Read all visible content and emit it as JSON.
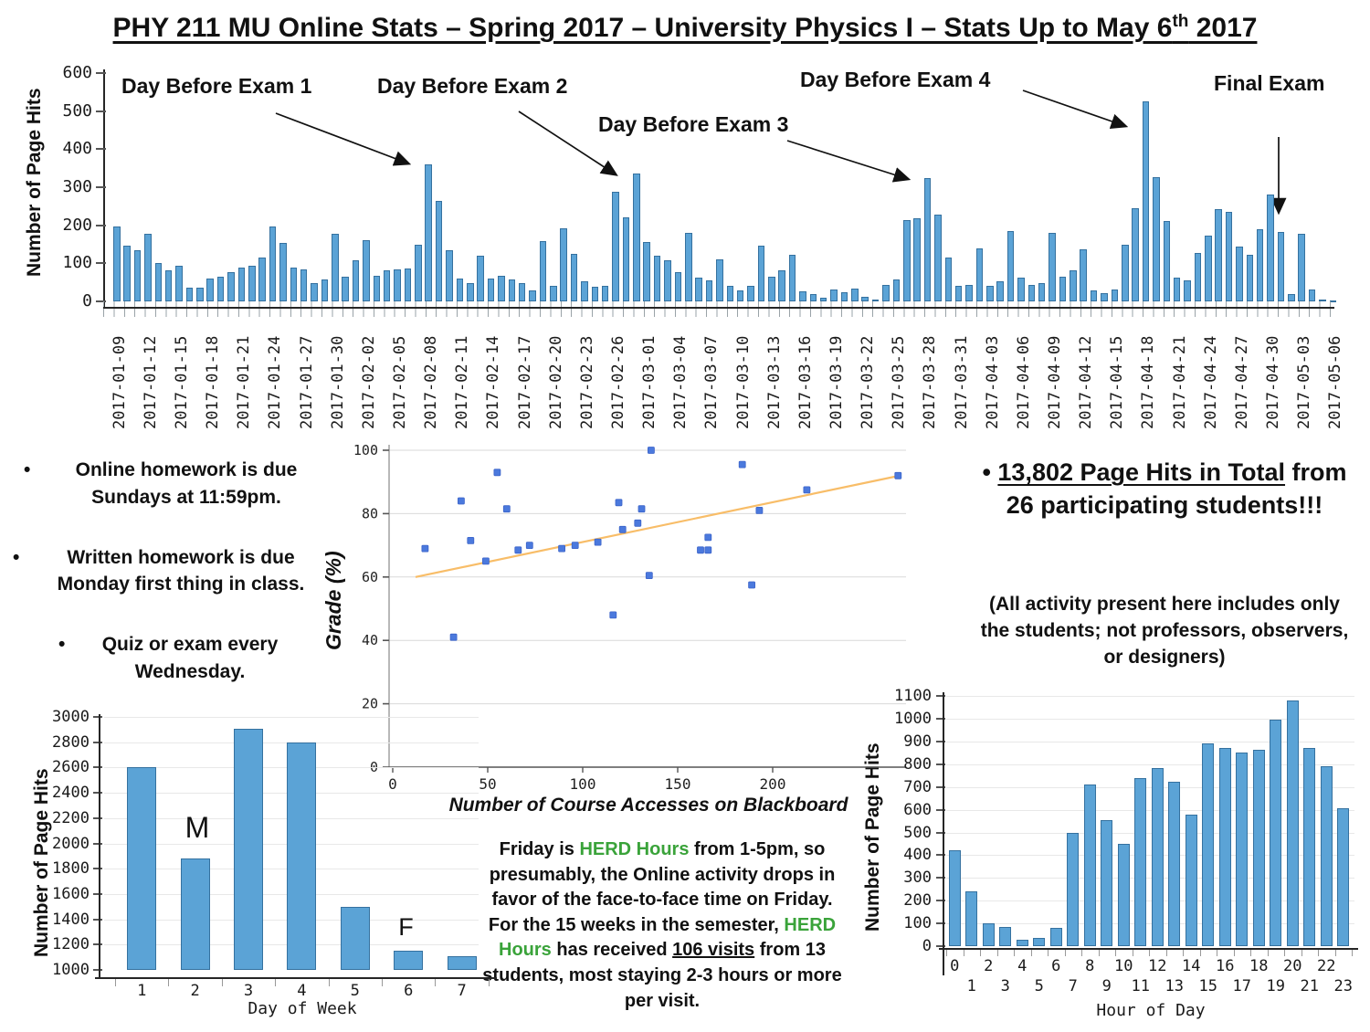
{
  "page_title": {
    "main": "PHY 211 MU Online Stats – Spring 2017 – University Physics I – Stats Up to May 6",
    "sup": "th",
    "tail": " 2017"
  },
  "colors": {
    "bar_fill": "#5ba3d6",
    "bar_stroke": "#35719f",
    "scatter_point": "#4b79dd",
    "scatter_point_stroke": "#3b63c9",
    "trend_line": "#f8bd68",
    "herd_green": "#3aa33a",
    "axis": "#262626",
    "grid": "#d9d9d9"
  },
  "exam_annotations": [
    "Day Before Exam 1",
    "Day Before Exam 2",
    "Day Before Exam 3",
    "Day Before Exam 4",
    "Final Exam"
  ],
  "left_notes": {
    "items": [
      "Online homework is due Sundays at 11:59pm.",
      "Written homework is due Monday first thing in class.",
      "Quiz or exam every Wednesday."
    ]
  },
  "totals": {
    "headline": "13,802 Page Hits in Total",
    "rest": "from 26 participating students!!!",
    "note": "(All activity present here includes only the students; not professors, observers, or designers)"
  },
  "herd_note": {
    "p1": "Friday is ",
    "green1": "HERD Hours",
    "p2": " from 1-5pm, so presumably, the Online activity drops in favor of the face-to-face time on Friday. For the 15 weeks in the semester, ",
    "green2": "HERD Hours",
    "p3": " has received ",
    "visits": "106 visits",
    "p4": " from 13 students, most staying 2-3 hours or more per visit."
  },
  "chart_data": [
    {
      "id": "daily-page-hits",
      "type": "bar",
      "ylabel": "Number of Page Hits",
      "ylim": [
        0,
        600
      ],
      "yticks": [
        0,
        100,
        200,
        300,
        400,
        500,
        600
      ],
      "x_start": "2017-01-09",
      "x_end": "2017-05-06",
      "x_tick_labels": [
        "2017-01-09",
        "2017-01-12",
        "2017-01-15",
        "2017-01-18",
        "2017-01-21",
        "2017-01-24",
        "2017-01-27",
        "2017-01-30",
        "2017-02-02",
        "2017-02-05",
        "2017-02-08",
        "2017-02-11",
        "2017-02-14",
        "2017-02-17",
        "2017-02-20",
        "2017-02-23",
        "2017-02-26",
        "2017-03-01",
        "2017-03-04",
        "2017-03-07",
        "2017-03-10",
        "2017-03-13",
        "2017-03-16",
        "2017-03-19",
        "2017-03-22",
        "2017-03-25",
        "2017-03-28",
        "2017-03-31",
        "2017-04-03",
        "2017-04-06",
        "2017-04-09",
        "2017-04-12",
        "2017-04-15",
        "2017-04-18",
        "2017-04-21",
        "2017-04-24",
        "2017-04-27",
        "2017-04-30",
        "2017-05-03",
        "2017-05-06"
      ],
      "values": [
        197,
        146,
        135,
        177,
        100,
        81,
        93,
        35,
        35,
        59,
        64,
        76,
        88,
        93,
        115,
        197,
        154,
        90,
        85,
        48,
        57,
        177,
        64,
        107,
        162,
        68,
        82,
        85,
        86,
        150,
        360,
        263,
        134,
        59,
        48,
        120,
        60,
        68,
        57,
        47,
        30,
        158,
        40,
        192,
        126,
        52,
        39,
        40,
        289,
        222,
        335,
        156,
        120,
        107,
        78,
        181,
        63,
        56,
        110,
        40,
        28,
        41,
        146,
        66,
        81,
        123,
        26,
        19,
        10,
        32,
        25,
        34,
        13,
        6,
        44,
        57,
        214,
        219,
        325,
        227,
        116,
        40,
        43,
        140,
        42,
        52,
        186,
        63,
        43,
        49,
        180,
        66,
        81,
        138,
        29,
        21,
        31,
        150,
        244,
        525,
        327,
        212,
        63,
        56,
        127,
        174,
        242,
        235,
        144,
        123,
        189,
        281,
        182,
        19,
        177,
        31,
        6,
        2
      ]
    },
    {
      "id": "grade-vs-accesses",
      "type": "scatter",
      "xlabel": "Number of Course Accesses on Blackboard",
      "ylabel": "Grade (%)",
      "xlim": [
        0,
        270
      ],
      "ylim": [
        0,
        100
      ],
      "xticks": [
        0,
        50,
        100,
        150,
        200
      ],
      "yticks": [
        0,
        20,
        40,
        60,
        80,
        100
      ],
      "grid": "horizontal",
      "points": [
        [
          17,
          69
        ],
        [
          32,
          41
        ],
        [
          36,
          84
        ],
        [
          41,
          71.5
        ],
        [
          49,
          65
        ],
        [
          55,
          93
        ],
        [
          60,
          81.5
        ],
        [
          66,
          68.5
        ],
        [
          72,
          70
        ],
        [
          89,
          69
        ],
        [
          96,
          70
        ],
        [
          108,
          71
        ],
        [
          116,
          48
        ],
        [
          119,
          83.5
        ],
        [
          121,
          75
        ],
        [
          129,
          77
        ],
        [
          131,
          81.5
        ],
        [
          135,
          60.5
        ],
        [
          136,
          100
        ],
        [
          162,
          68.5
        ],
        [
          166,
          72.5
        ],
        [
          166,
          68.5
        ],
        [
          184,
          95.5
        ],
        [
          189,
          57.5
        ],
        [
          193,
          81
        ],
        [
          218,
          87.5
        ],
        [
          266,
          92
        ]
      ],
      "trend_line": {
        "x1": 12,
        "y1": 60,
        "x2": 267,
        "y2": 92
      }
    },
    {
      "id": "day-of-week-page-hits",
      "type": "bar",
      "xlabel": "Day of Week",
      "ylabel": "Number of Page Hits",
      "categories": [
        "1",
        "2",
        "3",
        "4",
        "5",
        "6",
        "7"
      ],
      "values": [
        2600,
        1880,
        2905,
        2795,
        1500,
        1150,
        1110
      ],
      "ylim": [
        1000,
        3000
      ],
      "yticks": [
        1000,
        1200,
        1400,
        1600,
        1800,
        2000,
        2200,
        2400,
        2600,
        2800,
        3000
      ],
      "bar_labels": [
        {
          "text": "M",
          "day": 2
        },
        {
          "text": "F",
          "day": 6
        }
      ]
    },
    {
      "id": "hour-of-day-page-hits",
      "type": "bar",
      "xlabel": "Hour of Day",
      "ylabel": "Number of Page Hits",
      "categories": [
        "0",
        "1",
        "2",
        "3",
        "4",
        "5",
        "6",
        "7",
        "8",
        "9",
        "10",
        "11",
        "12",
        "13",
        "14",
        "15",
        "16",
        "17",
        "18",
        "19",
        "20",
        "21",
        "22",
        "23"
      ],
      "values": [
        420,
        240,
        100,
        85,
        30,
        38,
        80,
        497,
        712,
        553,
        452,
        740,
        785,
        723,
        580,
        890,
        873,
        853,
        862,
        995,
        1080,
        873,
        790,
        607
      ],
      "ylim": [
        0,
        1100
      ],
      "yticks": [
        0,
        100,
        200,
        300,
        400,
        500,
        600,
        700,
        800,
        900,
        1000,
        1100
      ]
    }
  ]
}
